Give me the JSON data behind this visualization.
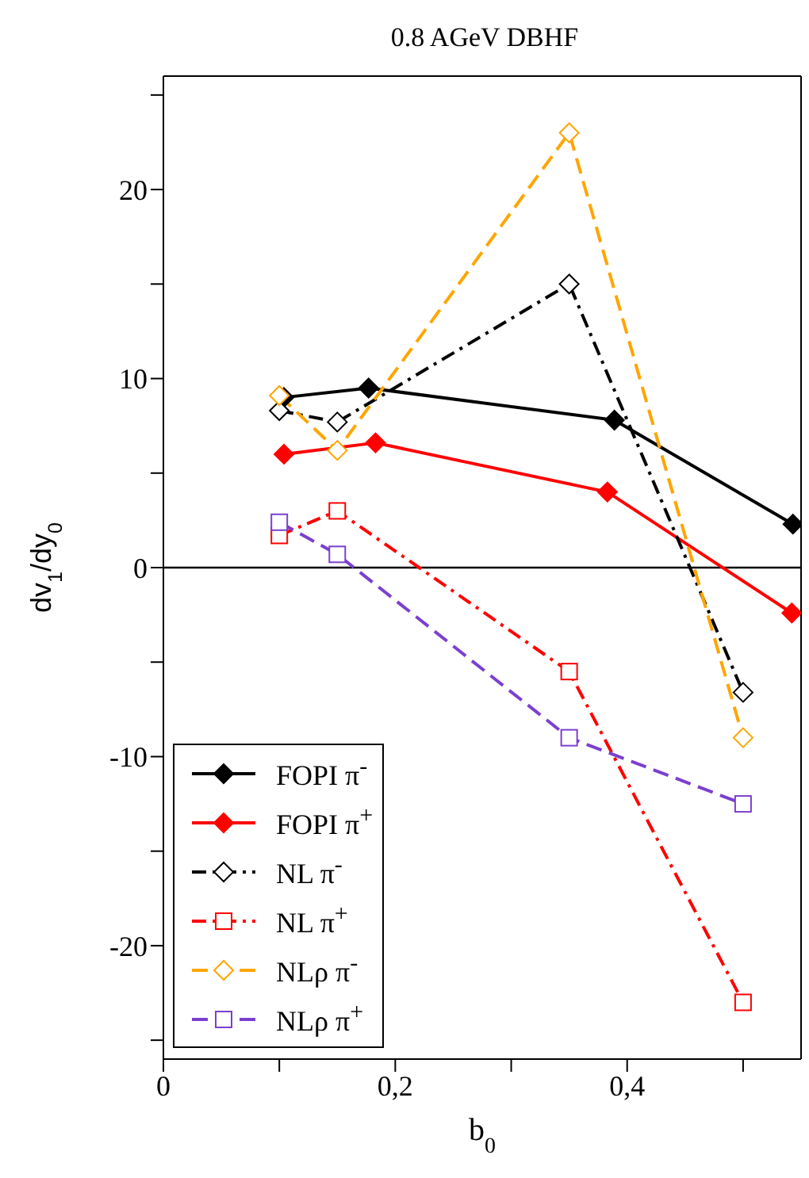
{
  "chart_data": {
    "type": "line",
    "title": "0.8 AGeV DBHF",
    "xlabel": "b$_{0}$",
    "ylabel": "dv$_{1}$/dy$_{0}$",
    "xlim": [
      0,
      0.55
    ],
    "xticks": [
      0,
      {
        "value": 0.1,
        "label": null
      },
      {
        "value": 0.2,
        "label": "0,2"
      },
      {
        "value": 0.3,
        "label": null
      },
      {
        "value": 0.4,
        "label": "0,4"
      },
      {
        "value": 0.5,
        "label": null
      }
    ],
    "ylim": [
      -26,
      26
    ],
    "yticks": [
      {
        "value": -25,
        "label": null
      },
      -20,
      {
        "value": -15,
        "label": null
      },
      -10,
      {
        "value": -5,
        "label": null
      },
      0,
      {
        "value": 5,
        "label": null
      },
      10,
      {
        "value": 15,
        "label": null
      },
      20,
      {
        "value": 25,
        "label": null
      }
    ],
    "grid": false,
    "legend": "bottom left",
    "ref_lines": [
      {
        "axis": "y",
        "value": 0,
        "color": "#000000"
      }
    ],
    "series": [
      {
        "name": "FOPI π$^{-}$",
        "color": "#000000",
        "marker": "diamond",
        "line_style": "solid",
        "x": [
          0.104,
          0.177,
          0.389,
          0.543
        ],
        "values": [
          9.0,
          9.5,
          7.8,
          2.3
        ]
      },
      {
        "name": "FOPI π$^{+}$",
        "color": "#ff0000",
        "marker": "diamond",
        "line_style": "solid",
        "x": [
          0.104,
          0.183,
          0.383,
          0.542
        ],
        "values": [
          6.0,
          6.6,
          4.0,
          -2.4
        ]
      },
      {
        "name": "NL π$^{-}$",
        "color": "#000000",
        "marker": "diamond",
        "line_style": "dashdot",
        "x": [
          0.1,
          0.15,
          0.35,
          0.5
        ],
        "values": [
          8.3,
          7.7,
          15.0,
          -6.6
        ]
      },
      {
        "name": "NL π$^{+}$",
        "color": "#ff0000",
        "marker": "square",
        "line_style": "dashdot",
        "x": [
          0.1,
          0.15,
          0.35,
          0.5
        ],
        "values": [
          1.7,
          3.0,
          -5.5,
          -23.0
        ]
      },
      {
        "name": "NLρ π$^{-}$",
        "color": "#ffa500",
        "marker": "diamond",
        "line_style": "dashed",
        "x": [
          0.1,
          0.15,
          0.35,
          0.5
        ],
        "values": [
          9.1,
          6.2,
          23.0,
          -9.0
        ]
      },
      {
        "name": "NLρ π$^{+}$",
        "color": "#7b3fd0",
        "marker": "square",
        "line_style": "dashed",
        "x": [
          0.1,
          0.15,
          0.35,
          0.5
        ],
        "values": [
          2.4,
          0.7,
          -9.0,
          -12.5
        ]
      }
    ]
  }
}
